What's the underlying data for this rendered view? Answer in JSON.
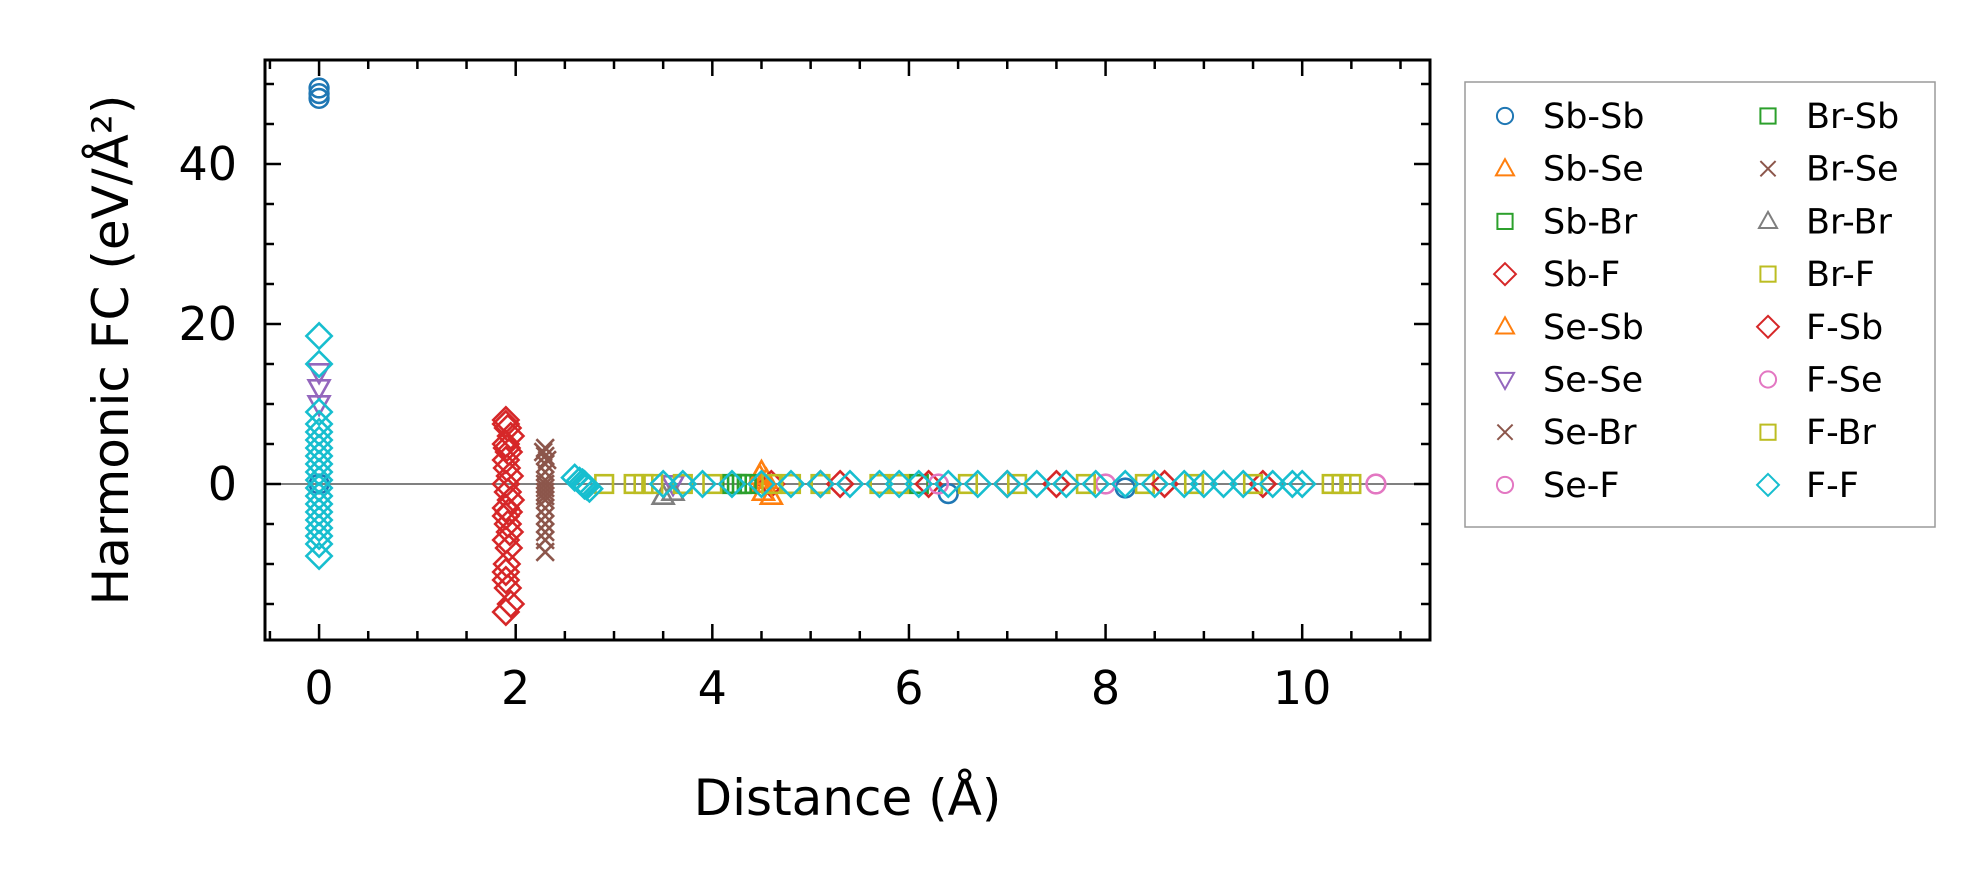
{
  "chart_data": {
    "type": "scatter",
    "title": "",
    "xlabel": "Distance (Å)",
    "ylabel": "Harmonic FC (eV/Å²)",
    "xlim": [
      -0.55,
      11.3
    ],
    "ylim": [
      -19.5,
      53
    ],
    "xticks": [
      0,
      2,
      4,
      6,
      8,
      10
    ],
    "yticks": [
      0,
      20,
      40
    ],
    "legend_position": "outside-right",
    "series": [
      {
        "name": "Sb-Sb",
        "marker": "circle",
        "color": "#1f77b4",
        "x": [
          0,
          0,
          0,
          0,
          6.4,
          8.2
        ],
        "y": [
          49.5,
          48.8,
          48.2,
          0,
          -1.2,
          -0.5
        ]
      },
      {
        "name": "Sb-Se",
        "marker": "triangle-up",
        "color": "#ff7f0e",
        "x": [
          4.5,
          4.55,
          4.6,
          4.5
        ],
        "y": [
          1.5,
          0.5,
          -1.5,
          0
        ]
      },
      {
        "name": "Sb-Br",
        "marker": "square",
        "color": "#2ca02c",
        "x": [
          4.2,
          4.3,
          6.1
        ],
        "y": [
          0,
          0,
          0
        ]
      },
      {
        "name": "Sb-F",
        "marker": "diamond",
        "color": "#d62728",
        "x": [
          1.9,
          1.92,
          1.95,
          1.9,
          1.93,
          1.9,
          1.91,
          1.94,
          1.9,
          1.92,
          1.95,
          1.9,
          1.9,
          1.92,
          1.94,
          1.9,
          1.93,
          1.91,
          1.9,
          1.92,
          1.95,
          1.9,
          4.6,
          5.1,
          6.2,
          7.5,
          9.6
        ],
        "y": [
          8,
          7,
          6,
          5,
          4,
          3,
          2,
          1,
          0,
          -1,
          -2,
          -3,
          -4,
          -5,
          -6,
          -7,
          -8,
          -10,
          -12,
          -13,
          -15,
          -16,
          0,
          0,
          0,
          0,
          0
        ]
      },
      {
        "name": "Se-Sb",
        "marker": "triangle-up",
        "color": "#ff7f0e",
        "x": [
          4.48,
          4.52
        ],
        "y": [
          1,
          -1
        ]
      },
      {
        "name": "Se-Se",
        "marker": "triangle-down",
        "color": "#9467bd",
        "x": [
          0,
          0,
          0,
          3.6
        ],
        "y": [
          14,
          12,
          10,
          0
        ]
      },
      {
        "name": "Se-Br",
        "marker": "x",
        "color": "#8c564b",
        "x": [
          2.3,
          2.3,
          2.3,
          2.3,
          2.3,
          2.3,
          2.3,
          2.3,
          2.3,
          2.3,
          2.3,
          2.3,
          2.3,
          2.3,
          2.3
        ],
        "y": [
          4.5,
          3.5,
          2.5,
          1.5,
          0.5,
          0,
          -0.5,
          -1,
          -1.5,
          -2,
          -3,
          -4,
          -5,
          -7,
          -8.5
        ]
      },
      {
        "name": "Se-F",
        "marker": "circle",
        "color": "#e377c2",
        "x": [
          6.3,
          8.0
        ],
        "y": [
          0,
          0
        ]
      },
      {
        "name": "Br-Sb",
        "marker": "square",
        "color": "#2ca02c",
        "x": [
          4.25,
          4.35
        ],
        "y": [
          0,
          0
        ]
      },
      {
        "name": "Br-Se",
        "marker": "x",
        "color": "#8c564b",
        "x": [
          2.28,
          2.32,
          2.3
        ],
        "y": [
          4,
          3,
          -6
        ]
      },
      {
        "name": "Br-Br",
        "marker": "triangle-up",
        "color": "#7f7f7f",
        "x": [
          3.5,
          3.6
        ],
        "y": [
          -1.5,
          -1
        ]
      },
      {
        "name": "Br-F",
        "marker": "square",
        "color": "#bcbd22",
        "x": [
          2.9,
          3.2,
          3.4,
          3.7,
          4.0,
          4.6,
          4.8,
          5.1,
          5.7,
          6.6,
          7.1,
          7.8,
          8.4,
          8.9,
          9.5,
          10.3,
          10.5
        ],
        "y": [
          0,
          0,
          0,
          0,
          0,
          0,
          0,
          0,
          0,
          0,
          0,
          0,
          0,
          0,
          0,
          0,
          0
        ]
      },
      {
        "name": "F-Sb",
        "marker": "diamond",
        "color": "#d62728",
        "x": [
          1.9,
          1.91,
          1.93,
          1.9,
          5.3,
          7.0,
          8.6
        ],
        "y": [
          7.5,
          4.5,
          -3.5,
          -11,
          0,
          0,
          0
        ]
      },
      {
        "name": "F-Se",
        "marker": "circle",
        "color": "#e377c2",
        "x": [
          10.75
        ],
        "y": [
          0
        ]
      },
      {
        "name": "F-Br",
        "marker": "square",
        "color": "#bcbd22",
        "x": [
          3.3,
          5.9,
          10.4
        ],
        "y": [
          0,
          0,
          0
        ]
      },
      {
        "name": "F-F",
        "marker": "diamond",
        "color": "#17becf",
        "x": [
          0,
          0,
          0,
          0,
          0,
          0,
          0,
          0,
          0,
          0,
          0,
          0,
          0,
          0,
          0,
          0,
          0,
          0,
          0,
          0,
          2.6,
          2.65,
          2.7,
          2.72,
          2.75,
          2.68,
          2.7,
          3.5,
          3.7,
          3.9,
          4.2,
          4.5,
          4.8,
          5.1,
          5.4,
          5.7,
          5.9,
          6.1,
          6.4,
          6.7,
          7.0,
          7.3,
          7.6,
          7.9,
          8.2,
          8.5,
          8.8,
          9.0,
          9.2,
          9.4,
          9.7,
          9.9,
          10.0
        ],
        "y": [
          18.5,
          15,
          9,
          7.5,
          6.5,
          5.5,
          4.5,
          3.5,
          2.5,
          1.5,
          0.5,
          -0.5,
          -1.5,
          -2.5,
          -3.5,
          -4.5,
          -5.5,
          -6.5,
          -7.5,
          -9,
          0.8,
          0.4,
          0,
          -0.3,
          -0.6,
          0.2,
          -0.2,
          0,
          0,
          0,
          0,
          0,
          0,
          0,
          0,
          0,
          0,
          0,
          0,
          0,
          0,
          0,
          0,
          0,
          0,
          0,
          0,
          0,
          0,
          0,
          0,
          0,
          0
        ]
      }
    ]
  }
}
